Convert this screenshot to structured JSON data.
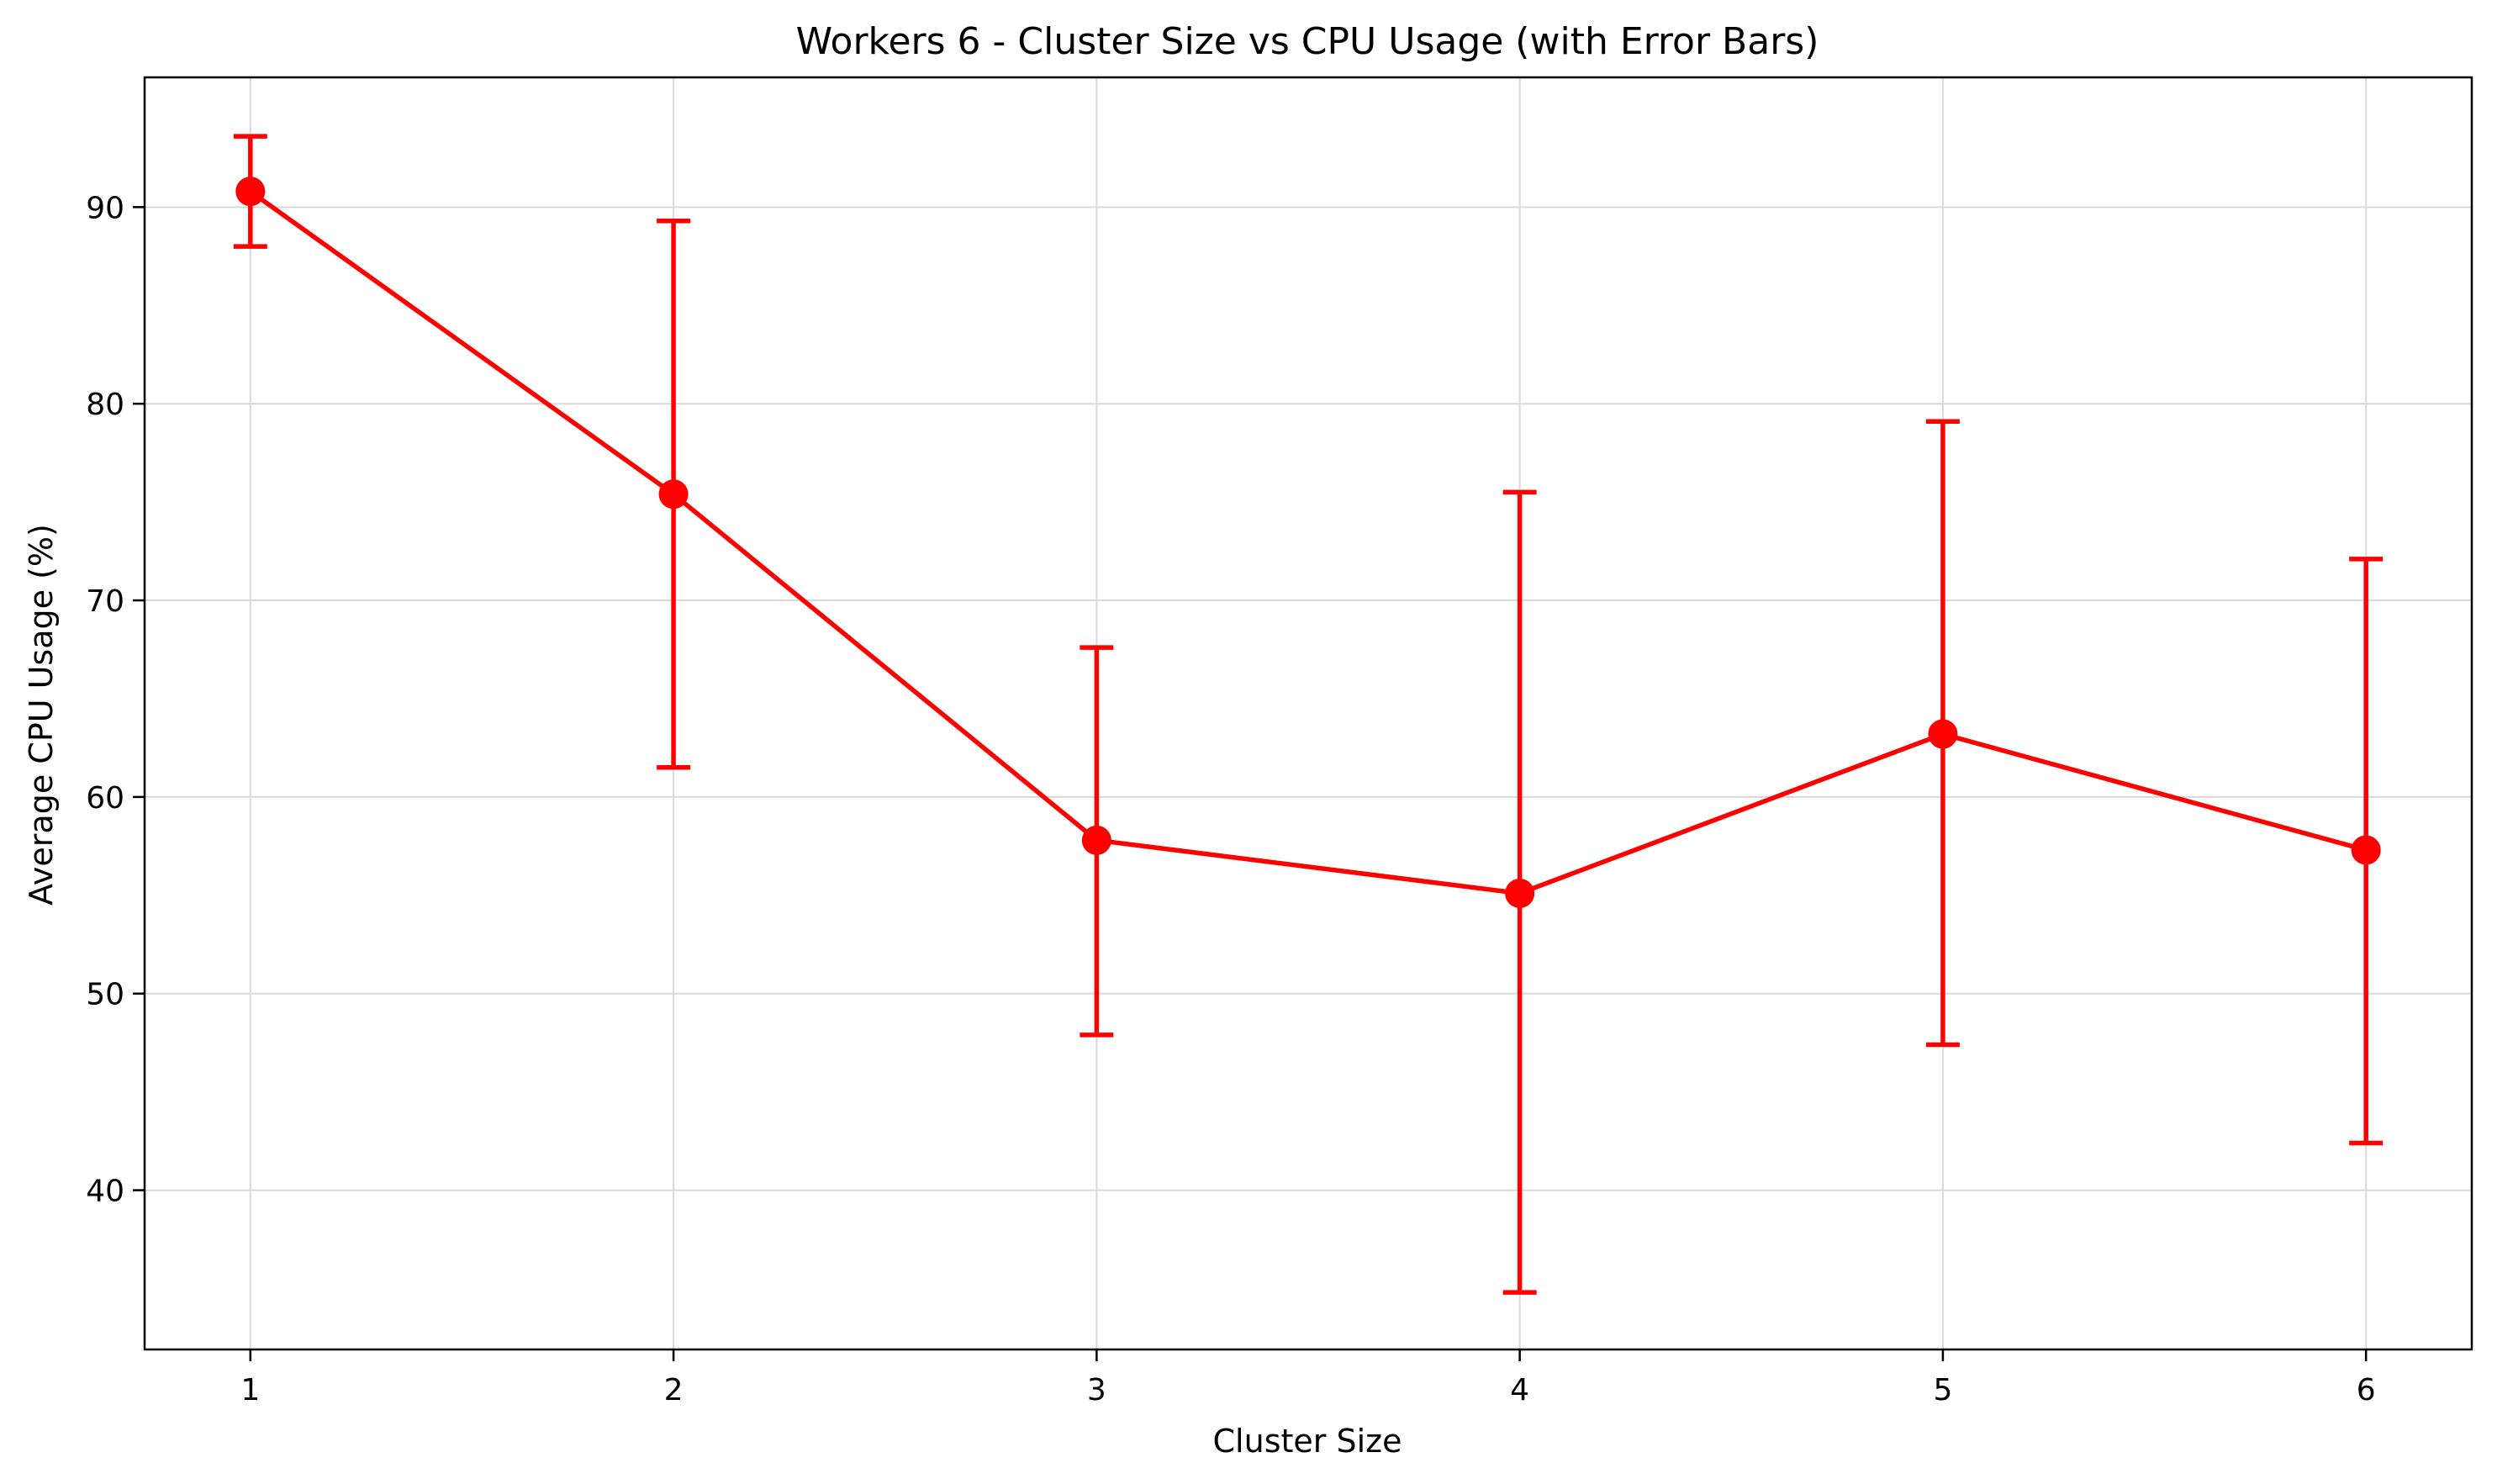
{
  "chart_data": {
    "type": "line",
    "title": "Workers 6 - Cluster Size vs CPU Usage (with Error Bars)",
    "xlabel": "Cluster Size",
    "ylabel": "Average CPU Usage (%)",
    "x": [
      1,
      2,
      3,
      4,
      5,
      6
    ],
    "xticks": [
      "1",
      "2",
      "3",
      "4",
      "5",
      "6"
    ],
    "yticks": [
      40,
      50,
      60,
      70,
      80,
      90
    ],
    "xlim": [
      0.75,
      6.25
    ],
    "ylim": [
      31.9,
      96.6
    ],
    "grid": true,
    "series": [
      {
        "values": [
          90.8,
          75.4,
          57.8,
          55.1,
          63.2,
          57.3
        ],
        "error_low": [
          88.0,
          61.5,
          47.9,
          34.8,
          47.4,
          42.4
        ],
        "error_high": [
          93.6,
          89.3,
          67.6,
          75.5,
          79.1,
          72.1
        ],
        "color": "#ff0000",
        "marker": "circle"
      }
    ]
  }
}
